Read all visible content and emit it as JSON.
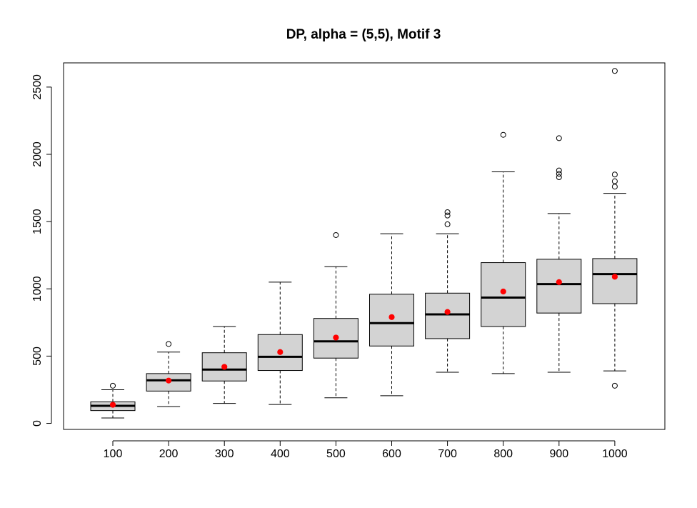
{
  "chart_data": {
    "type": "boxplot",
    "title": "DP, alpha = (5,5), Motif 3",
    "xlabel": "",
    "ylabel": "",
    "categories": [
      "100",
      "200",
      "300",
      "400",
      "500",
      "600",
      "700",
      "800",
      "900",
      "1000"
    ],
    "y_ticks": [
      "0",
      "500",
      "1000",
      "1500",
      "2000",
      "2500"
    ],
    "ylim": [
      -45,
      2680
    ],
    "grid": false,
    "legend": "none",
    "boxes": [
      {
        "category": "100",
        "whisker_low": 40,
        "q1": 95,
        "median": 130,
        "q3": 160,
        "whisker_high": 250,
        "mean": 138,
        "outliers": [
          280
        ]
      },
      {
        "category": "200",
        "whisker_low": 125,
        "q1": 240,
        "median": 320,
        "q3": 370,
        "whisker_high": 530,
        "mean": 318,
        "outliers": [
          590
        ]
      },
      {
        "category": "300",
        "whisker_low": 148,
        "q1": 315,
        "median": 400,
        "q3": 525,
        "whisker_high": 720,
        "mean": 420,
        "outliers": []
      },
      {
        "category": "400",
        "whisker_low": 140,
        "q1": 393,
        "median": 495,
        "q3": 660,
        "whisker_high": 1050,
        "mean": 530,
        "outliers": []
      },
      {
        "category": "500",
        "whisker_low": 190,
        "q1": 485,
        "median": 610,
        "q3": 780,
        "whisker_high": 1165,
        "mean": 638,
        "outliers": [
          1400
        ]
      },
      {
        "category": "600",
        "whisker_low": 205,
        "q1": 575,
        "median": 745,
        "q3": 960,
        "whisker_high": 1410,
        "mean": 790,
        "outliers": []
      },
      {
        "category": "700",
        "whisker_low": 380,
        "q1": 630,
        "median": 810,
        "q3": 968,
        "whisker_high": 1410,
        "mean": 828,
        "outliers": [
          1480,
          1545,
          1570
        ]
      },
      {
        "category": "800",
        "whisker_low": 370,
        "q1": 720,
        "median": 935,
        "q3": 1195,
        "whisker_high": 1870,
        "mean": 980,
        "outliers": [
          2145
        ]
      },
      {
        "category": "900",
        "whisker_low": 380,
        "q1": 820,
        "median": 1035,
        "q3": 1220,
        "whisker_high": 1560,
        "mean": 1050,
        "outliers": [
          1830,
          1855,
          1880,
          2120
        ]
      },
      {
        "category": "1000",
        "whisker_low": 390,
        "q1": 890,
        "median": 1110,
        "q3": 1225,
        "whisker_high": 1710,
        "mean": 1090,
        "outliers": [
          280,
          1760,
          1800,
          1850,
          2620
        ]
      }
    ]
  },
  "colors": {
    "box_fill": "#d3d3d3",
    "mean_point": "#ff0000",
    "stroke": "#000000"
  }
}
